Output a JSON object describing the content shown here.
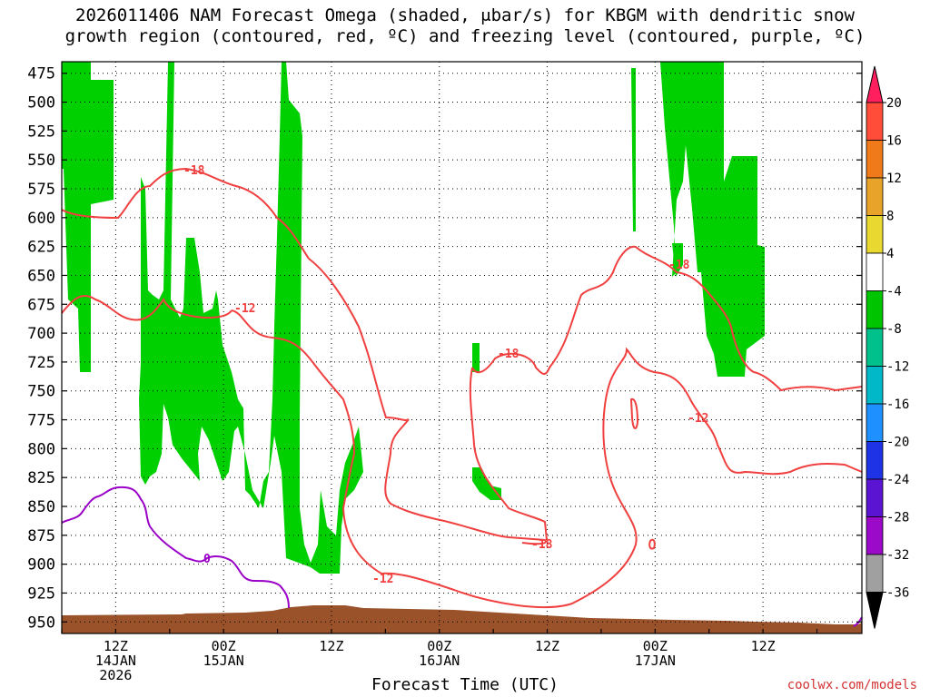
{
  "title": {
    "line1": "2026011406 NAM Forecast Omega (shaded, μbar/s) for KBGM with dendritic snow",
    "line2": "growth region (contoured, red, ºC) and freezing level (contoured, purple, ºC)"
  },
  "credit": "coolwx.com/models",
  "colors": {
    "omega_green": "#00d000",
    "temp_contour": "#f04040",
    "freezing_contour": "#9a00c8",
    "terrain": "#9a522a",
    "grid": "#000000"
  },
  "chart_data": {
    "type": "time-height cross section",
    "title": "2026011406 NAM Forecast Omega (shaded, μbar/s) for KBGM with dendritic snow growth region (contoured, red, ºC) and freezing level (contoured, purple, ºC)",
    "xlabel": "Forecast Time (UTC)",
    "ylabel": "",
    "ylim_hpa": [
      960,
      465
    ],
    "y_ticks": [
      475,
      500,
      525,
      550,
      575,
      600,
      625,
      650,
      675,
      700,
      725,
      750,
      775,
      800,
      825,
      850,
      875,
      900,
      925,
      950
    ],
    "x_range_hours_utc": [
      "2026-01-14 06Z",
      "2026-01-17 23Z"
    ],
    "x_ticks": [
      {
        "t": "2026-01-14 12Z",
        "lines": [
          "12Z",
          "14JAN",
          "2026"
        ]
      },
      {
        "t": "2026-01-15 00Z",
        "lines": [
          "00Z",
          "15JAN"
        ]
      },
      {
        "t": "2026-01-15 12Z",
        "lines": [
          "12Z"
        ]
      },
      {
        "t": "2026-01-16 00Z",
        "lines": [
          "00Z",
          "16JAN"
        ]
      },
      {
        "t": "2026-01-16 12Z",
        "lines": [
          "12Z"
        ]
      },
      {
        "t": "2026-01-17 00Z",
        "lines": [
          "00Z",
          "17JAN"
        ]
      },
      {
        "t": "2026-01-17 12Z",
        "lines": [
          "12Z"
        ]
      }
    ],
    "grid": true,
    "colorbar": {
      "labels": [
        "20",
        "16",
        "12",
        "8",
        "4",
        "-4",
        "-8",
        "-12",
        "-16",
        "-20",
        "-24",
        "-28",
        "-32",
        "-36"
      ],
      "colors": [
        "#ff1f5f",
        "#ff4d3a",
        "#f07a1a",
        "#e8a42a",
        "#e8d830",
        "#ffffff",
        "#00c400",
        "#00c08c",
        "#00b8c8",
        "#1e90ff",
        "#1e32e6",
        "#5a14d2",
        "#9a0ac8",
        "#a0a0a0"
      ]
    },
    "omega_shading": "-8 to -4 μbar/s (green)",
    "contour_labels_temperature": [
      "-18",
      "-12",
      "-12",
      "-18",
      "-18",
      "-12",
      "-18"
    ],
    "contour_labels_freezing": [
      "0",
      "0"
    ]
  }
}
